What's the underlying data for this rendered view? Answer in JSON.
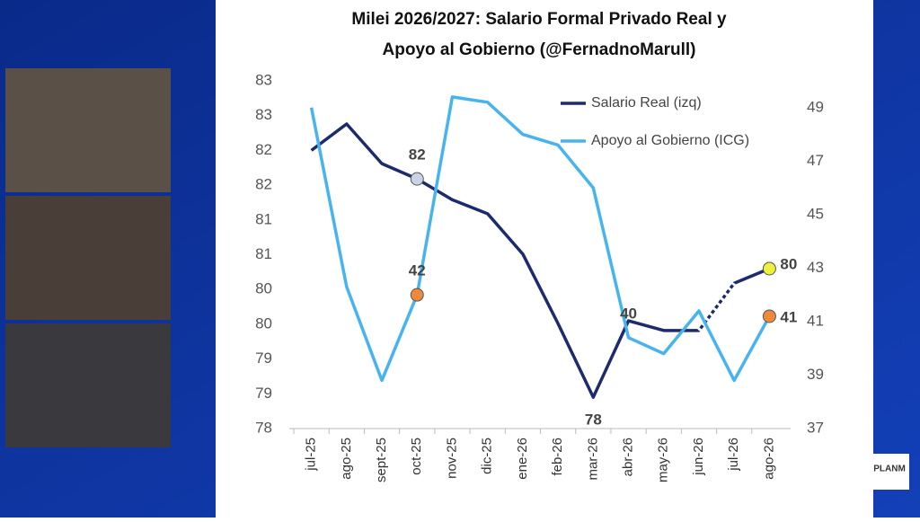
{
  "chart_data": {
    "type": "line",
    "title": [
      "Milei 2026/2027: Salario Formal Privado Real y",
      "Apoyo al Gobierno  (@FernadnoMarull)"
    ],
    "categories": [
      "jul-25",
      "ago-25",
      "sept-25",
      "oct-25",
      "nov-25",
      "dic-25",
      "ene-26",
      "feb-26",
      "mar-26",
      "abr-26",
      "may-26",
      "jun-26",
      "jul-26",
      "ago-26"
    ],
    "series": [
      {
        "name": "Salario Real (izq)",
        "color": "#1c2b6e",
        "values": [
          82.0,
          82.38,
          81.81,
          81.59,
          81.29,
          81.09,
          80.51,
          79.51,
          78.45,
          79.55,
          79.41,
          79.41,
          80.09,
          80.3
        ],
        "value_labels": [
          null,
          null,
          null,
          "82",
          null,
          null,
          null,
          null,
          "78",
          null,
          null,
          null,
          null,
          "80"
        ],
        "marker_colors": [
          null,
          null,
          null,
          "#c9d3e6",
          null,
          null,
          null,
          null,
          null,
          null,
          null,
          null,
          null,
          "#eef03c"
        ]
      },
      {
        "name": "Apoyo al Gobierno (ICG)",
        "color": "#48b4ef",
        "axis": "y2",
        "values": [
          49.0,
          42.3,
          38.8,
          42.0,
          49.4,
          49.2,
          48.0,
          47.6,
          46.0,
          40.4,
          39.8,
          41.4,
          38.8,
          41.2
        ],
        "value_labels": [
          null,
          null,
          null,
          "42",
          null,
          null,
          null,
          null,
          null,
          "40",
          null,
          null,
          null,
          "41"
        ],
        "marker_colors": [
          null,
          null,
          null,
          "#f08a3a",
          null,
          null,
          null,
          null,
          null,
          null,
          null,
          null,
          null,
          "#f08a3a"
        ]
      }
    ],
    "ylim": [
      78,
      83
    ],
    "yticks": [
      78,
      {
        "value": 78.5,
        "label": "79"
      },
      79,
      {
        "value": 79.5,
        "label": "80"
      },
      80,
      {
        "value": 80.5,
        "label": "81"
      },
      81,
      {
        "value": 81.5,
        "label": "82"
      },
      82,
      {
        "value": 82.5,
        "label": "83"
      },
      83
    ],
    "y2lim": [
      37,
      50
    ],
    "y2ticks": [
      37,
      39,
      41,
      43,
      45,
      47,
      49
    ],
    "legend": "top-right"
  },
  "overlay": {
    "logo": "PLANM"
  }
}
